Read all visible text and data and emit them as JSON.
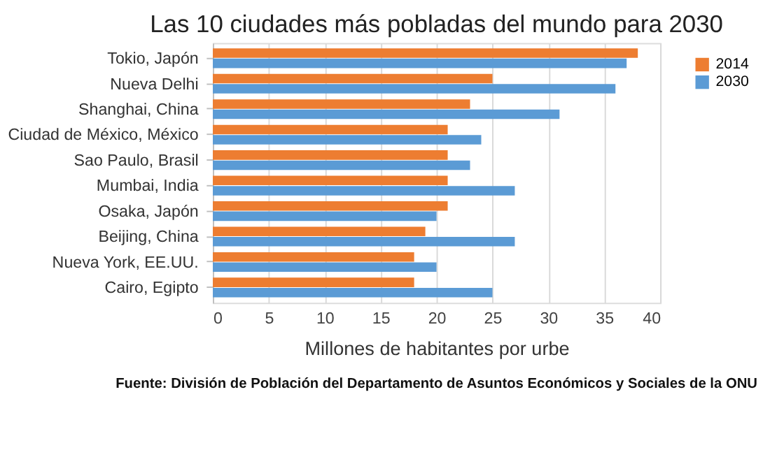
{
  "chart_data": {
    "type": "bar",
    "orientation": "horizontal",
    "title": "Las 10 ciudades más pobladas del mundo para 2030",
    "categories": [
      "Tokio, Japón",
      "Nueva Delhi",
      "Shanghai, China",
      "Ciudad de México, México",
      "Sao Paulo, Brasil",
      "Mumbai, India",
      "Osaka, Japón",
      "Beijing, China",
      "Nueva York, EE.UU.",
      "Cairo, Egipto"
    ],
    "series": [
      {
        "name": "2014",
        "color": "#ed7d31",
        "values": [
          38,
          25,
          23,
          21,
          21,
          21,
          21,
          19,
          18,
          18
        ]
      },
      {
        "name": "2030",
        "color": "#5b9bd5",
        "values": [
          37,
          36,
          31,
          24,
          23,
          27,
          20,
          27,
          20,
          25
        ]
      }
    ],
    "xlabel": "Millones de habitantes por urbe",
    "xlim": [
      0,
      40
    ],
    "xticks": [
      0,
      5,
      10,
      15,
      20,
      25,
      30,
      35,
      40
    ],
    "grid": "x",
    "legend": "right",
    "annotations": [
      "Fuente: División de Población del Departamento de Asuntos Económicos y Sociales de la ONU"
    ]
  }
}
